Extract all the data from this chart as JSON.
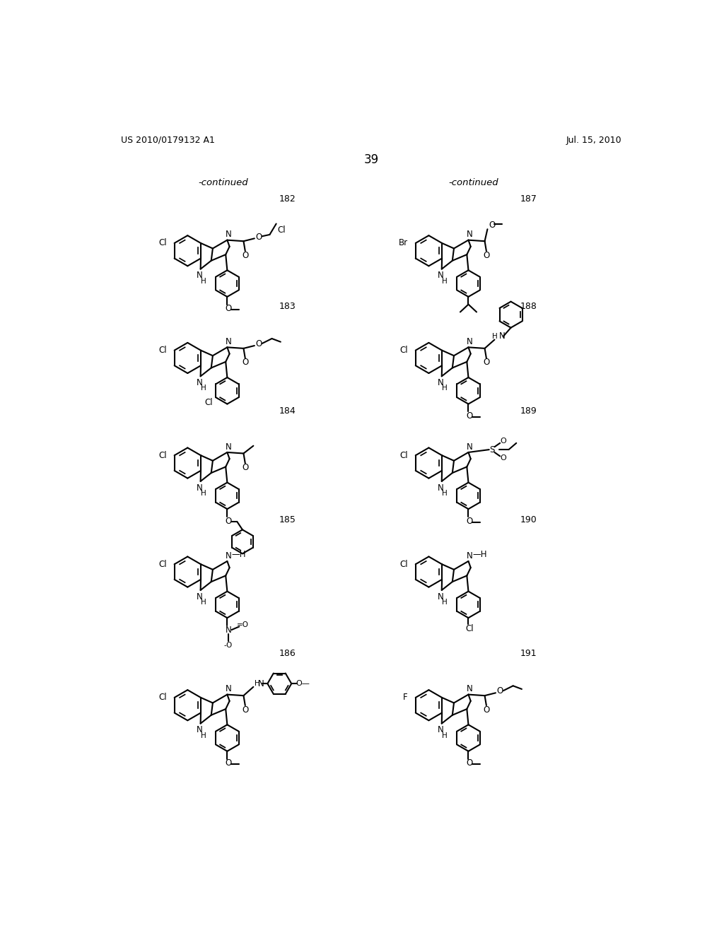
{
  "page_header_left": "US 2010/0179132 A1",
  "page_header_right": "Jul. 15, 2010",
  "page_number": "39",
  "continued_left": "-continued",
  "continued_right": "-continued",
  "background_color": "#ffffff",
  "text_color": "#000000"
}
